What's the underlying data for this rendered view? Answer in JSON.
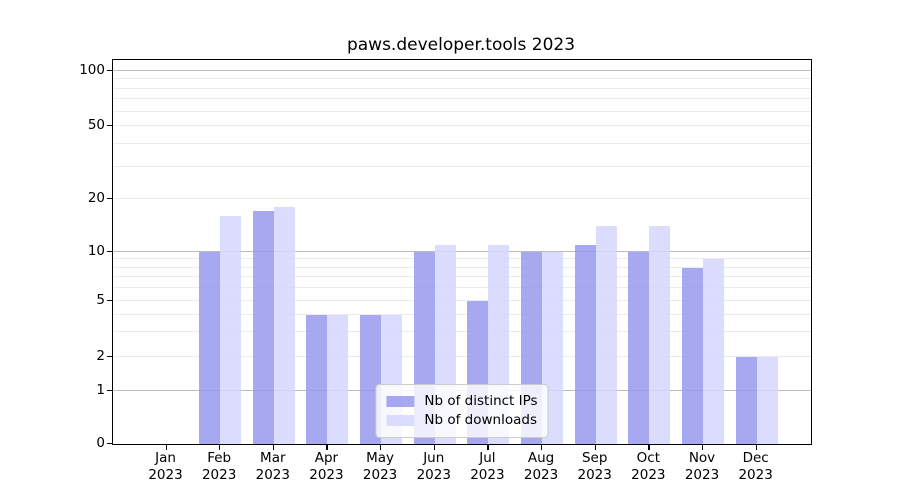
{
  "chart_data": {
    "type": "bar",
    "title": "paws.developer.tools 2023",
    "categories": [
      {
        "month": "Jan",
        "year": "2023"
      },
      {
        "month": "Feb",
        "year": "2023"
      },
      {
        "month": "Mar",
        "year": "2023"
      },
      {
        "month": "Apr",
        "year": "2023"
      },
      {
        "month": "May",
        "year": "2023"
      },
      {
        "month": "Jun",
        "year": "2023"
      },
      {
        "month": "Jul",
        "year": "2023"
      },
      {
        "month": "Aug",
        "year": "2023"
      },
      {
        "month": "Sep",
        "year": "2023"
      },
      {
        "month": "Oct",
        "year": "2023"
      },
      {
        "month": "Nov",
        "year": "2023"
      },
      {
        "month": "Dec",
        "year": "2023"
      }
    ],
    "series": [
      {
        "name": "Nb of distinct IPs",
        "color": "#9999ee",
        "opacity": 0.85,
        "values": [
          0,
          10,
          17,
          4,
          4,
          10,
          5,
          10,
          11,
          10,
          8,
          2
        ]
      },
      {
        "name": "Nb of downloads",
        "color": "#d6d6ff",
        "opacity": 0.85,
        "values": [
          0,
          16,
          18,
          4,
          4,
          11,
          11,
          10,
          14,
          14,
          9,
          2
        ]
      }
    ],
    "y_axis": {
      "scale": "log above 1, linear 0-1",
      "tick_labels": [
        "0",
        "1",
        "2",
        "5",
        "10",
        "20",
        "50",
        "100"
      ],
      "ticks": [
        0,
        1,
        2,
        5,
        10,
        20,
        50,
        100
      ],
      "major_gridlines": [
        1,
        10,
        100
      ],
      "minor_gridlines": [
        2,
        3,
        4,
        5,
        6,
        7,
        8,
        9,
        20,
        30,
        40,
        50,
        60,
        70,
        80,
        90
      ],
      "range": [
        0,
        130
      ],
      "major_grid_color": "#bdbdbd",
      "minor_grid_color": "#ebebeb"
    },
    "x_axis": {
      "label": "",
      "year_row": "2023"
    },
    "legend": {
      "position": "lower-center"
    }
  }
}
